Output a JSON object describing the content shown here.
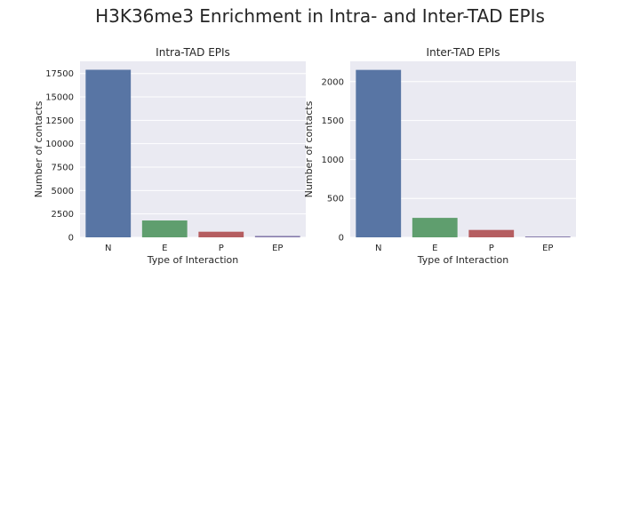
{
  "figure": {
    "suptitle": "H3K36me3 Enrichment in Intra- and Inter-TAD EPIs"
  },
  "palette": {
    "background": "#ffffff",
    "panel": "#eaeaf2",
    "grid": "#ffffff",
    "text": "#262626"
  },
  "chart_data": [
    {
      "type": "bar",
      "title": "Intra-TAD EPIs",
      "xlabel": "Type of Interaction",
      "ylabel": "Number of contacts",
      "categories": [
        "N",
        "E",
        "P",
        "EP"
      ],
      "values": [
        17900,
        1800,
        600,
        150
      ],
      "colors": [
        "#5875a4",
        "#5f9e6e",
        "#b55d60",
        "#857aab"
      ],
      "ylim": [
        0,
        18800
      ],
      "yticks": [
        0,
        2500,
        5000,
        7500,
        10000,
        12500,
        15000,
        17500
      ],
      "grid": true,
      "legend": "none"
    },
    {
      "type": "bar",
      "title": "Inter-TAD EPIs",
      "xlabel": "Type of Interaction",
      "ylabel": "Number of contacts",
      "categories": [
        "N",
        "E",
        "P",
        "EP"
      ],
      "values": [
        2150,
        250,
        95,
        10
      ],
      "colors": [
        "#5875a4",
        "#5f9e6e",
        "#b55d60",
        "#857aab"
      ],
      "ylim": [
        0,
        2260
      ],
      "yticks": [
        0,
        500,
        1000,
        1500,
        2000
      ],
      "grid": true,
      "legend": "none"
    }
  ]
}
